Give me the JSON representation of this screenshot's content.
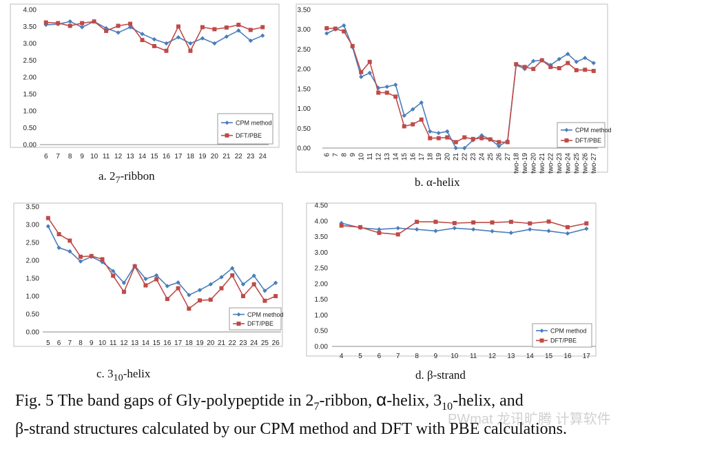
{
  "series_colors": {
    "cpm": "#4a7ebb",
    "dft": "#be4b48"
  },
  "chart_data": [
    {
      "type": "line",
      "ylim": [
        0,
        4
      ],
      "yticks": [
        "0.00",
        "0.50",
        "1.00",
        "1.50",
        "2.00",
        "2.50",
        "3.00",
        "3.50",
        "4.00"
      ],
      "x": [
        "6",
        "7",
        "8",
        "9",
        "10",
        "11",
        "12",
        "13",
        "14",
        "15",
        "16",
        "17",
        "18",
        "19",
        "20",
        "21",
        "22",
        "23",
        "24"
      ],
      "series": [
        {
          "name": "CPM method",
          "values": [
            3.55,
            3.57,
            3.65,
            3.48,
            3.65,
            3.45,
            3.32,
            3.48,
            3.28,
            3.12,
            3.0,
            3.18,
            3.0,
            3.15,
            3.0,
            3.2,
            3.38,
            3.08,
            3.23
          ]
        },
        {
          "name": "DFT/PBE",
          "values": [
            3.62,
            3.6,
            3.52,
            3.6,
            3.65,
            3.37,
            3.52,
            3.58,
            3.1,
            2.92,
            2.78,
            3.5,
            2.78,
            3.48,
            3.42,
            3.47,
            3.55,
            3.4,
            3.48
          ]
        }
      ],
      "caption": {
        "pre": "a. 2",
        "sub": "7",
        "post": "-ribbon"
      }
    },
    {
      "type": "line",
      "ylim": [
        0,
        3.5
      ],
      "yticks": [
        "0.00",
        "0.50",
        "1.00",
        "1.50",
        "2.00",
        "2.50",
        "3.00",
        "3.50"
      ],
      "x": [
        "6",
        "7",
        "8",
        "9",
        "10",
        "11",
        "12",
        "13",
        "14",
        "15",
        "16",
        "17",
        "18",
        "19",
        "20",
        "21",
        "22",
        "23",
        "24",
        "25",
        "26",
        "27",
        "two-18",
        "two-19",
        "two-20",
        "two-21",
        "two-22",
        "two-23",
        "two-24",
        "two-25",
        "two-26",
        "two-27"
      ],
      "series": [
        {
          "name": "CPM method",
          "values": [
            2.9,
            3.0,
            3.1,
            2.55,
            1.8,
            1.9,
            1.52,
            1.55,
            1.6,
            0.82,
            0.98,
            1.15,
            0.42,
            0.38,
            0.42,
            0.0,
            0.0,
            0.2,
            0.32,
            0.22,
            0.05,
            0.18,
            2.1,
            2.0,
            2.2,
            2.22,
            2.1,
            2.25,
            2.38,
            2.18,
            2.28,
            2.15
          ]
        },
        {
          "name": "DFT/PBE",
          "values": [
            3.03,
            3.02,
            2.95,
            2.58,
            1.92,
            2.18,
            1.4,
            1.4,
            1.3,
            0.55,
            0.6,
            0.72,
            0.25,
            0.25,
            0.27,
            0.15,
            0.27,
            0.23,
            0.25,
            0.22,
            0.15,
            0.15,
            2.12,
            2.05,
            2.0,
            2.22,
            2.05,
            2.02,
            2.15,
            1.97,
            1.98,
            1.95
          ]
        }
      ],
      "caption": {
        "pre": "b. ",
        "sym": "α",
        "post": "-helix"
      }
    },
    {
      "type": "line",
      "ylim": [
        0,
        3.5
      ],
      "yticks": [
        "0.00",
        "0.50",
        "1.00",
        "1.50",
        "2.00",
        "2.50",
        "3.00",
        "3.50"
      ],
      "x": [
        "5",
        "6",
        "7",
        "8",
        "9",
        "10",
        "11",
        "12",
        "13",
        "14",
        "15",
        "16",
        "17",
        "18",
        "19",
        "20",
        "21",
        "22",
        "23",
        "24",
        "25",
        "26"
      ],
      "series": [
        {
          "name": "CPM method",
          "values": [
            2.95,
            2.35,
            2.25,
            1.97,
            2.1,
            1.95,
            1.7,
            1.37,
            1.85,
            1.48,
            1.58,
            1.28,
            1.38,
            1.03,
            1.17,
            1.33,
            1.53,
            1.78,
            1.33,
            1.57,
            1.15,
            1.37
          ]
        },
        {
          "name": "DFT/PBE",
          "values": [
            3.18,
            2.73,
            2.55,
            2.1,
            2.12,
            2.03,
            1.57,
            1.12,
            1.83,
            1.3,
            1.47,
            0.92,
            1.22,
            0.65,
            0.88,
            0.9,
            1.22,
            1.58,
            1.0,
            1.33,
            0.87,
            1.0
          ]
        }
      ],
      "caption": {
        "pre": "c. 3",
        "sub": "10",
        "post": "-helix"
      }
    },
    {
      "type": "line",
      "ylim": [
        0,
        4.5
      ],
      "yticks": [
        "0.00",
        "0.50",
        "1.00",
        "1.50",
        "2.00",
        "2.50",
        "3.00",
        "3.50",
        "4.00",
        "4.50"
      ],
      "x": [
        "4",
        "5",
        "6",
        "7",
        "8",
        "9",
        "10",
        "11",
        "12",
        "13",
        "14",
        "15",
        "16",
        "17"
      ],
      "series": [
        {
          "name": "CPM method",
          "values": [
            3.93,
            3.78,
            3.73,
            3.77,
            3.73,
            3.68,
            3.77,
            3.73,
            3.67,
            3.62,
            3.73,
            3.68,
            3.6,
            3.75
          ]
        },
        {
          "name": "DFT/PBE",
          "values": [
            3.85,
            3.8,
            3.62,
            3.57,
            3.97,
            3.97,
            3.93,
            3.95,
            3.95,
            3.97,
            3.92,
            3.98,
            3.8,
            3.92
          ]
        }
      ],
      "caption": {
        "pre": "d. ",
        "sym": "β",
        "post": "-strand"
      }
    }
  ],
  "figure_caption": {
    "p1": "Fig. 5 The band gaps of Gly-polypeptide in 2",
    "s1": "7",
    "p2": "-ribbon, ",
    "alpha": "α",
    "p3": "-helix, 3",
    "s2": "10",
    "p4": "-helix, and",
    "beta": "β",
    "p5": "-strand structures calculated by our CPM method and DFT with PBE calculations."
  },
  "watermark": "PWmat 龙讯旷腾 计算软件"
}
